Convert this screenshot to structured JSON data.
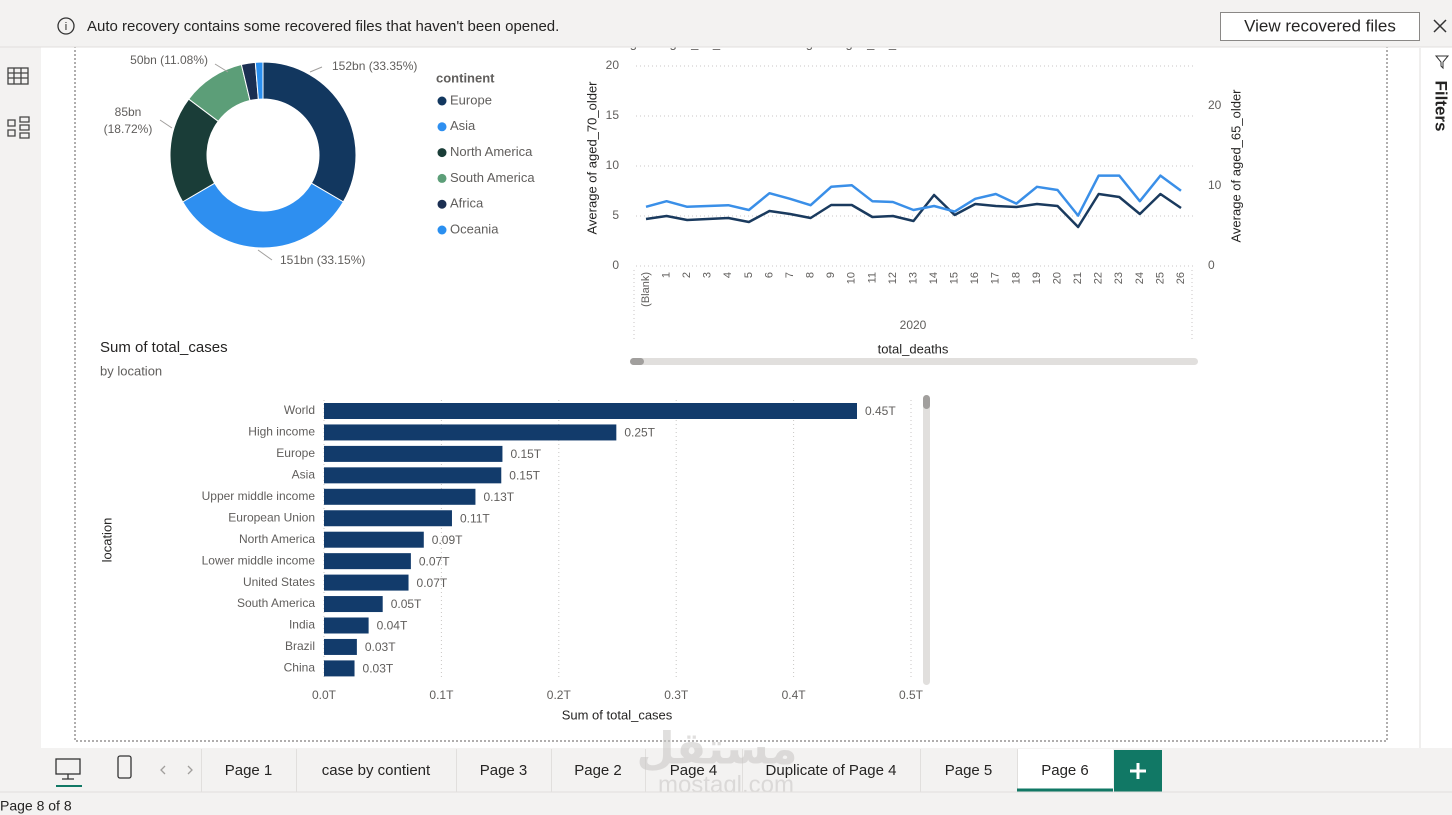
{
  "notification": {
    "message": "Auto recovery contains some recovered files that haven't been opened.",
    "button": "View recovered files"
  },
  "filters_label": "Filters",
  "chart_data": [
    {
      "type": "donut",
      "legend_title": "continent",
      "categories": [
        "Europe",
        "Asia",
        "North America",
        "South America",
        "Africa",
        "Oceania"
      ],
      "values": [
        152,
        151,
        85,
        50,
        11,
        6
      ],
      "value_labels": [
        "152bn (33.35%)",
        "151bn (33.15%)",
        "85bn (18.72%)",
        "50bn (11.08%)",
        null,
        null
      ],
      "colors": [
        "#12375f",
        "#2e8ff0",
        "#1a3d38",
        "#5c9e78",
        "#1b2f52",
        "#2a8ff0"
      ]
    },
    {
      "type": "line",
      "categories": [
        "(Blank)",
        "1",
        "2",
        "3",
        "4",
        "5",
        "6",
        "7",
        "8",
        "9",
        "10",
        "11",
        "12",
        "13",
        "14",
        "15",
        "16",
        "17",
        "18",
        "19",
        "20",
        "21",
        "22",
        "23",
        "24",
        "25",
        "26"
      ],
      "x_group_label": "2020",
      "xlabel": "total_deaths",
      "ylabel": "Average of aged_70_older",
      "y2label": "Average of aged_65_older",
      "ylim": [
        0,
        20
      ],
      "yticks": [
        0,
        5,
        10,
        15,
        20
      ],
      "y2lim": [
        0,
        25
      ],
      "y2ticks": [
        0,
        10,
        20
      ],
      "grid": true,
      "series": [
        {
          "name": "Average of aged_70_older",
          "color": "#1a3a5e",
          "values": [
            4.7,
            5.0,
            4.6,
            4.7,
            4.8,
            4.4,
            5.5,
            5.2,
            4.8,
            6.1,
            6.1,
            4.9,
            5.0,
            4.5,
            7.1,
            5.1,
            6.2,
            6.0,
            5.9,
            6.2,
            6.0,
            3.9,
            7.2,
            6.9,
            5.2,
            7.2,
            5.8
          ]
        },
        {
          "name": "Average of aged_65_older",
          "color": "#3a8fe8",
          "axis": "y2",
          "values": [
            7.4,
            8.1,
            7.4,
            7.5,
            7.6,
            7.0,
            9.1,
            8.4,
            7.6,
            9.9,
            10.1,
            8.1,
            8.0,
            7.0,
            7.5,
            6.8,
            8.4,
            9.0,
            7.8,
            9.9,
            9.5,
            6.3,
            11.3,
            11.3,
            8.1,
            11.3,
            9.4
          ]
        }
      ]
    },
    {
      "type": "hbar",
      "title": "Sum of total_cases",
      "subtitle": "by location",
      "xlabel": "Sum of total_cases",
      "ylabel": "location",
      "categories": [
        "World",
        "High income",
        "Europe",
        "Asia",
        "Upper middle income",
        "European Union",
        "North America",
        "Lower middle income",
        "United States",
        "South America",
        "India",
        "Brazil",
        "China"
      ],
      "values": [
        0.454,
        0.249,
        0.152,
        0.151,
        0.129,
        0.109,
        0.085,
        0.074,
        0.072,
        0.05,
        0.038,
        0.028,
        0.026
      ],
      "value_labels": [
        "0.45T",
        "0.25T",
        "0.15T",
        "0.15T",
        "0.13T",
        "0.11T",
        "0.09T",
        "0.07T",
        "0.07T",
        "0.05T",
        "0.04T",
        "0.03T",
        "0.03T"
      ],
      "color": "#123b6b",
      "xlim": [
        0,
        0.5
      ],
      "xticks": [
        {
          "value": 0,
          "label": "0.0T"
        },
        {
          "value": 0.1,
          "label": "0.1T"
        },
        {
          "value": 0.2,
          "label": "0.2T"
        },
        {
          "value": 0.3,
          "label": "0.3T"
        },
        {
          "value": 0.4,
          "label": "0.4T"
        },
        {
          "value": 0.5,
          "label": "0.5T"
        }
      ],
      "grid": true
    }
  ],
  "page_tabs": [
    "Page 1",
    "case by contient",
    "Page 3",
    "Page 2",
    "Page 4",
    "Duplicate of Page 4",
    "Page 5",
    "Page 6"
  ],
  "status": "Page 8 of 8",
  "watermark": [
    "مستقل",
    "mostaql.com"
  ]
}
